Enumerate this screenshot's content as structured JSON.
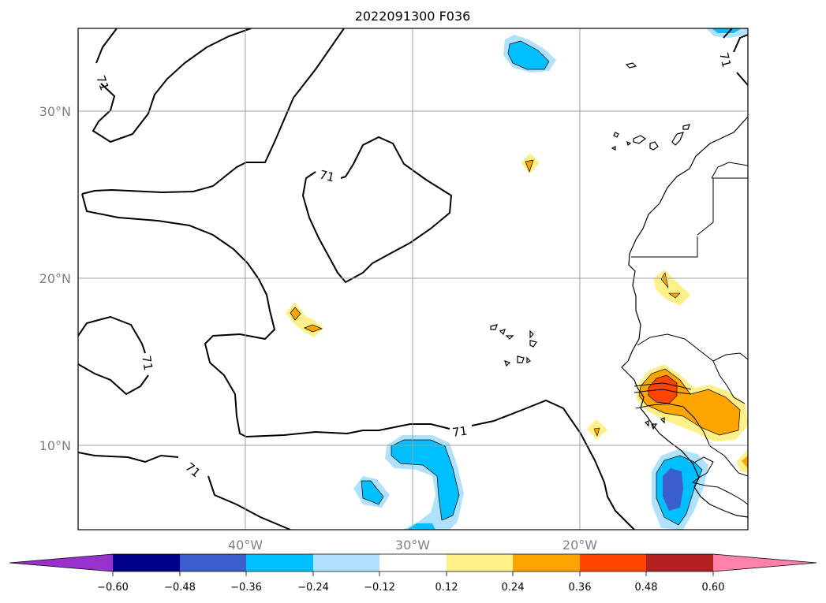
{
  "title": "2022091300 F036",
  "map": {
    "lat_labels": [
      "30°N",
      "20°N",
      "10°N"
    ],
    "lon_labels": [
      "40°W",
      "30°W",
      "20°W"
    ],
    "contour_value": "71",
    "grid": true
  },
  "colorbar": {
    "ticks": [
      "−0.60",
      "−0.48",
      "−0.36",
      "−0.24",
      "−0.12",
      "0.12",
      "0.24",
      "0.36",
      "0.48",
      "0.60"
    ],
    "colors": {
      "under": "#9932cc",
      "b1": "#00008b",
      "b2": "#3a5fcd",
      "b3": "#00bfff",
      "b4": "#b0e2ff",
      "b5": "#ffffff",
      "b6": "#fff08a",
      "b7": "#ffa500",
      "b8": "#ff4500",
      "b9": "#b22222",
      "over": "#ff82ab"
    }
  }
}
